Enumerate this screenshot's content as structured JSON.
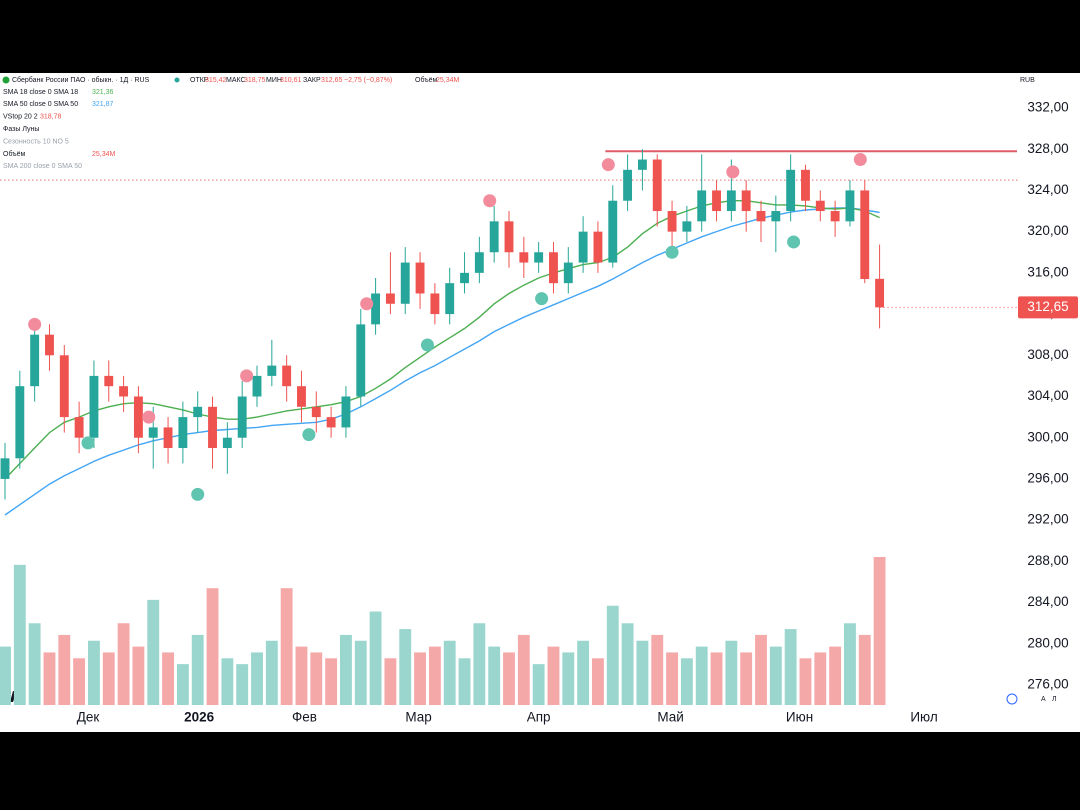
{
  "header": {
    "title": "Сбербанк России ПАО · обыкн. · 1Д · RUS",
    "open_label": "ОТКР",
    "open": "315,42",
    "high_label": "МАКС",
    "high": "318,75",
    "low_label": "МИН",
    "low": "310,61",
    "close_label": "ЗАКР",
    "close": "312,65",
    "change": "−2,75 (−0,87%)",
    "volume_label": "Объём",
    "volume": "25,34M",
    "currency": "RUB"
  },
  "indicators": [
    {
      "name": "SMA 18 close 0 SMA 18",
      "value": "321,36"
    },
    {
      "name": "SMA 50 close 0 SMA 50",
      "value": "321,87"
    },
    {
      "name": "VStop 20 2",
      "value": "318,78"
    },
    {
      "name": "Фазы Луны"
    },
    {
      "name": "Сезонность 10 NO 5"
    },
    {
      "name": "Объём",
      "value": "25,34M"
    },
    {
      "name": "SMA 200 close 0 SMA 50"
    }
  ],
  "footer": {
    "a": "А",
    "l": "Л"
  },
  "chart_data": {
    "type": "candlestick",
    "xlim": [
      0,
      68
    ],
    "xticks": [
      {
        "value": 5.6,
        "label": "Дек"
      },
      {
        "value": 13.1,
        "label": "2026"
      },
      {
        "value": 20.2,
        "label": "Фев"
      },
      {
        "value": 27.9,
        "label": "Мар"
      },
      {
        "value": 36.0,
        "label": "Апр"
      },
      {
        "value": 44.9,
        "label": "Май"
      },
      {
        "value": 53.6,
        "label": "Июн"
      },
      {
        "value": 62.0,
        "label": "Июл"
      }
    ],
    "ylim": [
      276,
      332
    ],
    "yticks": [
      {
        "value": 276,
        "label": "276,00"
      },
      {
        "value": 280,
        "label": "280,00"
      },
      {
        "value": 284,
        "label": "284,00"
      },
      {
        "value": 288,
        "label": "288,00"
      },
      {
        "value": 292,
        "label": "292,00"
      },
      {
        "value": 296,
        "label": "296,00"
      },
      {
        "value": 300,
        "label": "300,00"
      },
      {
        "value": 304,
        "label": "304,00"
      },
      {
        "value": 308,
        "label": "308,00"
      },
      {
        "value": 312,
        "label": "312,00"
      },
      {
        "value": 316,
        "label": "316,00"
      },
      {
        "value": 320,
        "label": "320,00"
      },
      {
        "value": 324,
        "label": "324,00"
      },
      {
        "value": 328,
        "label": "328,00"
      },
      {
        "value": 332,
        "label": "332,00"
      }
    ],
    "grid": false,
    "up_color": "#26a69a",
    "down_color": "#ef5350",
    "volume_up_color": "#9ad6ce",
    "volume_down_color": "#f5a8a8",
    "open": [
      296,
      298,
      305,
      310,
      308,
      302,
      300,
      306,
      305,
      304,
      300,
      301,
      299,
      302,
      303,
      299,
      300,
      304,
      306,
      307,
      305,
      303,
      302,
      301,
      304,
      311,
      314,
      313,
      317,
      314,
      312,
      315,
      316,
      318,
      321,
      318,
      317,
      318,
      315,
      317,
      320,
      317,
      323,
      326,
      327,
      322,
      320,
      321,
      324,
      322,
      324,
      322,
      321,
      322,
      326,
      323,
      322,
      321,
      324,
      315.42
    ],
    "high": [
      299.5,
      306.5,
      311.5,
      311,
      309,
      303.5,
      307.5,
      307.5,
      306,
      305,
      303,
      302,
      303.5,
      304.5,
      304,
      301.5,
      305.5,
      307,
      309.5,
      308,
      306.5,
      304.5,
      303,
      305,
      312.5,
      315.5,
      318,
      318.5,
      318,
      315,
      316.5,
      318,
      319.5,
      322.5,
      322,
      319.5,
      319,
      319,
      318.5,
      321.5,
      321,
      324.5,
      327.5,
      328,
      327.5,
      323,
      322.5,
      327.5,
      325,
      327,
      325,
      323,
      323.5,
      327.5,
      326.5,
      324,
      323,
      325,
      325,
      318.75
    ],
    "low": [
      294,
      297,
      303.5,
      306.5,
      300.5,
      298.5,
      299,
      303.5,
      302.5,
      298.5,
      297,
      297.5,
      297.5,
      300.5,
      297,
      296.5,
      299,
      303,
      305,
      303.5,
      301.5,
      300.5,
      300,
      300,
      303,
      310,
      312,
      312,
      312.5,
      311,
      311,
      314,
      315,
      317,
      316.5,
      315.5,
      316,
      314,
      314,
      316,
      316,
      316.5,
      322,
      324,
      320.5,
      318.5,
      319,
      320,
      321,
      321,
      320,
      319,
      318,
      321,
      322,
      321,
      319.5,
      320.5,
      315,
      310.61
    ],
    "close": [
      298,
      305,
      310,
      308,
      302,
      300,
      306,
      305,
      304,
      300,
      301,
      299,
      302,
      303,
      299,
      300,
      304,
      306,
      307,
      305,
      303,
      302,
      301,
      304,
      311,
      314,
      313,
      317,
      314,
      312,
      315,
      316,
      318,
      321,
      318,
      317,
      318,
      315,
      317,
      320,
      317,
      323,
      326,
      327,
      322,
      320,
      321,
      324,
      322,
      324,
      322,
      321,
      322,
      326,
      323,
      322,
      321,
      324,
      315.4,
      312.65
    ],
    "volume": [
      10,
      24,
      14,
      9,
      12,
      8,
      11,
      9,
      14,
      10,
      18,
      9,
      7,
      12,
      20,
      8,
      7,
      9,
      11,
      20,
      10,
      9,
      8,
      12,
      11,
      16,
      8,
      13,
      9,
      10,
      11,
      8,
      14,
      10,
      9,
      12,
      7,
      10,
      9,
      11,
      8,
      17,
      14,
      11,
      12,
      9,
      8,
      10,
      9,
      11,
      9,
      12,
      10,
      13,
      8,
      9,
      10,
      14,
      12,
      25.34
    ],
    "sma18": {
      "color": "#4caf50",
      "values": [
        296,
        297.5,
        299,
        300.5,
        301.5,
        302,
        302.6,
        303,
        303.3,
        303.4,
        303.3,
        303,
        302.7,
        302.3,
        302,
        301.8,
        301.8,
        302,
        302.3,
        302.6,
        302.8,
        303,
        303.2,
        303.5,
        304,
        304.8,
        305.7,
        306.8,
        307.8,
        308.8,
        309.7,
        310.6,
        311.7,
        313,
        314,
        314.8,
        315.5,
        316,
        316.4,
        316.8,
        317,
        317.5,
        318.5,
        319.8,
        320.8,
        321.5,
        322,
        322.5,
        322.8,
        323,
        323,
        322.8,
        322.6,
        322.6,
        322.5,
        322.3,
        322.2,
        322.3,
        322,
        321.36
      ]
    },
    "sma50": {
      "color": "#42a5f5",
      "values": [
        292.5,
        293.5,
        294.5,
        295.5,
        296.3,
        297,
        297.7,
        298.3,
        298.8,
        299.3,
        299.7,
        300,
        300.3,
        300.5,
        300.7,
        300.8,
        300.9,
        301,
        301.2,
        301.3,
        301.4,
        301.5,
        301.8,
        302.3,
        303,
        303.8,
        304.6,
        305.5,
        306.3,
        307,
        307.8,
        308.6,
        309.4,
        310.3,
        311,
        311.7,
        312.3,
        312.9,
        313.5,
        314.1,
        314.7,
        315.4,
        316.2,
        317,
        317.7,
        318.3,
        318.9,
        319.5,
        320,
        320.5,
        320.9,
        321.3,
        321.6,
        321.9,
        322.1,
        322.2,
        322.3,
        322.3,
        322.1,
        321.87
      ]
    },
    "full_moons": {
      "color": "#f28b9b",
      "points": [
        {
          "x": 2,
          "y": 311
        },
        {
          "x": 9.7,
          "y": 302
        },
        {
          "x": 16.3,
          "y": 306
        },
        {
          "x": 24.4,
          "y": 313
        },
        {
          "x": 32.7,
          "y": 323
        },
        {
          "x": 40.7,
          "y": 326.5
        },
        {
          "x": 49.1,
          "y": 325.8
        },
        {
          "x": 57.7,
          "y": 327
        }
      ]
    },
    "new_moons": {
      "color": "#5fc4b0",
      "points": [
        {
          "x": 5.6,
          "y": 299.5
        },
        {
          "x": 13,
          "y": 294.5
        },
        {
          "x": 20.5,
          "y": 300.3
        },
        {
          "x": 28.5,
          "y": 309
        },
        {
          "x": 36.2,
          "y": 313.5
        },
        {
          "x": 45,
          "y": 318
        },
        {
          "x": 53.2,
          "y": 319
        }
      ]
    },
    "resistance": {
      "value": 327.8,
      "from_x": 40.5,
      "color": "#e05a6a"
    },
    "dotted_level": 325,
    "last_price": {
      "value": 312.65,
      "label": "312,65"
    }
  }
}
